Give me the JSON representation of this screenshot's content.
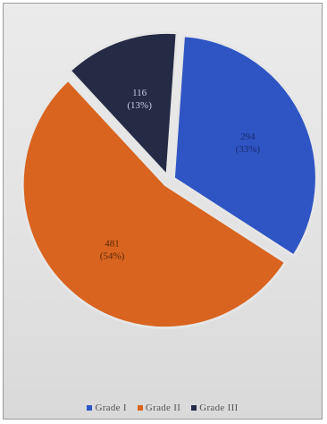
{
  "chart_data": {
    "type": "pie",
    "title": "",
    "legend_position": "bottom",
    "slices": [
      {
        "name": "Grade I",
        "value": 294,
        "label": "294",
        "percent_label": "(33%)",
        "color": "#2f55c4"
      },
      {
        "name": "Grade II",
        "value": 481,
        "label": "481",
        "percent_label": "(54%)",
        "color": "#d9641f"
      },
      {
        "name": "Grade III",
        "value": 116,
        "label": "116",
        "percent_label": "(13%)",
        "color": "#252a45"
      }
    ]
  }
}
